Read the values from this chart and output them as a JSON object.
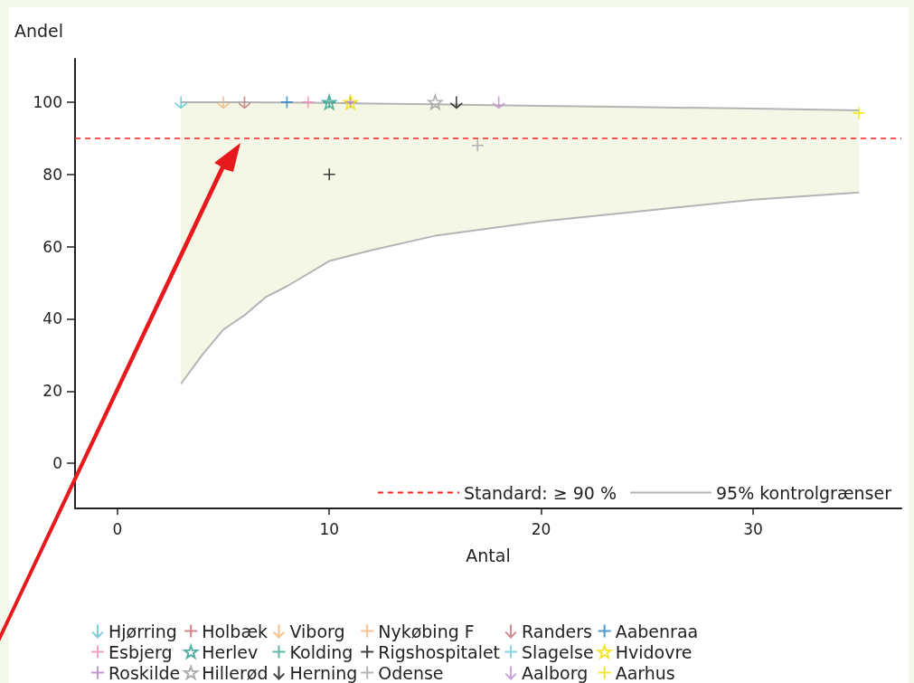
{
  "chart_data": {
    "type": "scatter",
    "xlabel": "Antal",
    "ylabel": "Andel",
    "xlim": [
      -2,
      37
    ],
    "xticks": [
      0,
      10,
      20,
      30
    ],
    "ylim": [
      -12.5,
      112
    ],
    "yticks": [
      0,
      20,
      40,
      60,
      80,
      100
    ],
    "legend": "bottom",
    "series": [
      {
        "name": "Hjørring",
        "color": "#5bc0d0",
        "x": [
          3
        ],
        "values": [
          100
        ]
      },
      {
        "name": "Esbjerg",
        "color": "#f08cb4",
        "marker": "cross",
        "x": [
          9
        ],
        "values": [
          100
        ]
      },
      {
        "name": "Roskilde",
        "color": "#b07cc0",
        "marker": "cross",
        "x": [
          11
        ],
        "values": [
          100
        ]
      },
      {
        "name": "Holbæk",
        "color": "#c8646e",
        "marker": "cross",
        "x": [
          null
        ],
        "values": [
          null
        ]
      },
      {
        "name": "Herlev",
        "color": "#2a9d8f",
        "marker": "star",
        "x": [
          10
        ],
        "values": [
          100
        ]
      },
      {
        "name": "Hillerød",
        "color": "#999999",
        "marker": "star",
        "x": [
          15
        ],
        "values": [
          100
        ]
      },
      {
        "name": "Viborg",
        "color": "#f5b26e",
        "x": [
          5
        ],
        "values": [
          100
        ]
      },
      {
        "name": "Kolding",
        "color": "#3aa58e",
        "marker": "cross",
        "x": [
          10
        ],
        "values": [
          100
        ]
      },
      {
        "name": "Herning",
        "color": "#111111",
        "x": [
          16
        ],
        "values": [
          100
        ]
      },
      {
        "name": "Nykøbing F",
        "color": "#f8b27a",
        "marker": "cross",
        "x": [
          null
        ],
        "values": [
          null
        ]
      },
      {
        "name": "Rigshospitalet",
        "color": "#111111",
        "marker": "cross",
        "x": [
          10
        ],
        "values": [
          80
        ]
      },
      {
        "name": "Odense",
        "color": "#a0a0a0",
        "marker": "cross",
        "x": [
          17
        ],
        "values": [
          88
        ]
      },
      {
        "name": "Randers",
        "color": "#c06b70",
        "x": [
          6
        ],
        "values": [
          100
        ]
      },
      {
        "name": "Slagelse",
        "color": "#6ccad8",
        "marker": "cross",
        "x": [
          null
        ],
        "values": [
          null
        ]
      },
      {
        "name": "Aalborg",
        "color": "#c08ad0",
        "x": [
          18
        ],
        "values": [
          100
        ]
      },
      {
        "name": "Aabenraa",
        "color": "#1f7fc8",
        "marker": "cross",
        "x": [
          8
        ],
        "values": [
          100
        ]
      },
      {
        "name": "Hvidovre",
        "color": "#f0e000",
        "marker": "star",
        "x": [
          11
        ],
        "values": [
          100
        ]
      },
      {
        "name": "Aarhus",
        "color": "#f0e000",
        "marker": "cross",
        "x": [
          35
        ],
        "values": [
          97
        ]
      },
      {
        "type": "line",
        "name": "95% kontrolgrænser",
        "color": "#b4b4b4",
        "x": [
          3,
          4,
          5,
          6,
          7,
          8,
          10,
          12,
          15,
          20,
          25,
          30,
          35
        ],
        "values": [
          100,
          100,
          100,
          100,
          99.9,
          99.9,
          99.8,
          99.6,
          99.4,
          99,
          98.6,
          98.2,
          97.7
        ]
      },
      {
        "type": "line",
        "color": "#b4b4b4",
        "x": [
          3,
          4,
          5,
          6,
          7,
          8,
          10,
          12,
          15,
          20,
          25,
          30,
          35
        ],
        "values": [
          22,
          30,
          37,
          41,
          46,
          49,
          56,
          59,
          63,
          67,
          70,
          73,
          75
        ]
      }
    ],
    "ref_lines": [
      {
        "axis": "y",
        "value": 90,
        "label": "Standard: ≥ 90 %",
        "color": "#ff2020",
        "line_style": "dashed"
      }
    ]
  }
}
